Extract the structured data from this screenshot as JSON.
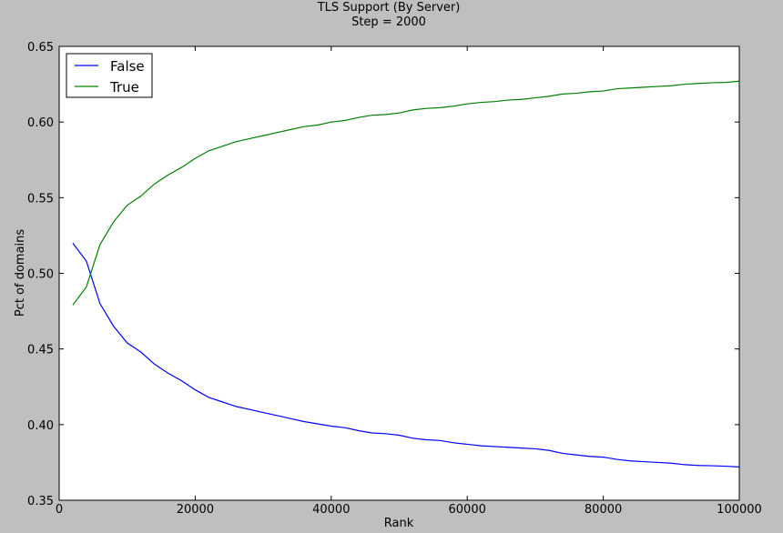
{
  "chart_data": {
    "type": "line",
    "title": "TLS Support (By Server)",
    "subtitle": "Step = 2000",
    "xlabel": "Rank",
    "ylabel": "Pct of domains",
    "xlim": [
      0,
      100000
    ],
    "ylim": [
      0.35,
      0.65
    ],
    "xticks": [
      0,
      20000,
      40000,
      60000,
      80000,
      100000
    ],
    "xtick_labels": [
      "0",
      "20000",
      "40000",
      "60000",
      "80000",
      "100000"
    ],
    "yticks": [
      0.35,
      0.4,
      0.45,
      0.5,
      0.55,
      0.6,
      0.65
    ],
    "ytick_labels": [
      "0.35",
      "0.40",
      "0.45",
      "0.50",
      "0.55",
      "0.60",
      "0.65"
    ],
    "grid": false,
    "legend": "top-left",
    "x": [
      2000,
      4000,
      6000,
      8000,
      10000,
      12000,
      14000,
      16000,
      18000,
      20000,
      22000,
      24000,
      26000,
      28000,
      30000,
      32000,
      34000,
      36000,
      38000,
      40000,
      42000,
      44000,
      46000,
      48000,
      50000,
      52000,
      54000,
      56000,
      58000,
      60000,
      62000,
      64000,
      66000,
      68000,
      70000,
      72000,
      74000,
      76000,
      78000,
      80000,
      82000,
      84000,
      86000,
      88000,
      90000,
      92000,
      94000,
      96000,
      98000,
      100000
    ],
    "series": [
      {
        "name": "False",
        "color": "#0000ff",
        "values": [
          0.52,
          0.508,
          0.48,
          0.465,
          0.454,
          0.448,
          0.44,
          0.434,
          0.429,
          0.423,
          0.418,
          0.415,
          0.412,
          0.41,
          0.408,
          0.406,
          0.404,
          0.402,
          0.4005,
          0.399,
          0.398,
          0.396,
          0.3945,
          0.394,
          0.393,
          0.391,
          0.39,
          0.3895,
          0.388,
          0.387,
          0.386,
          0.3855,
          0.385,
          0.3845,
          0.384,
          0.383,
          0.381,
          0.38,
          0.379,
          0.3785,
          0.377,
          0.376,
          0.3755,
          0.375,
          0.3745,
          0.3735,
          0.373,
          0.3728,
          0.3725,
          0.372
        ]
      },
      {
        "name": "True",
        "color": "#008000",
        "values": [
          0.479,
          0.491,
          0.519,
          0.534,
          0.545,
          0.551,
          0.559,
          0.565,
          0.57,
          0.576,
          0.581,
          0.584,
          0.587,
          0.589,
          0.591,
          0.593,
          0.595,
          0.597,
          0.598,
          0.6,
          0.601,
          0.603,
          0.6045,
          0.605,
          0.606,
          0.608,
          0.609,
          0.6095,
          0.6105,
          0.612,
          0.613,
          0.6135,
          0.6145,
          0.615,
          0.616,
          0.617,
          0.6185,
          0.619,
          0.62,
          0.6205,
          0.622,
          0.6225,
          0.623,
          0.6235,
          0.624,
          0.625,
          0.6255,
          0.626,
          0.6262,
          0.627
        ]
      }
    ]
  }
}
